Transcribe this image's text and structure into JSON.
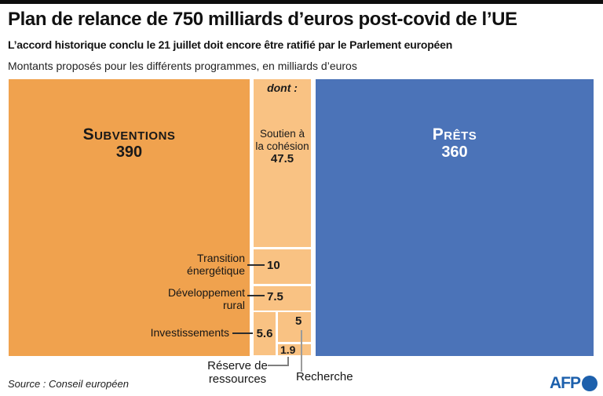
{
  "header": {
    "title": "Plan de relance de 750 milliards d’euros post-covid de l’UE",
    "subtitle": "L’accord historique conclu le 21 juillet doit encore être ratifié par le Parlement européen",
    "note": "Montants proposés pour les différents programmes, en milliards d’euros"
  },
  "chart": {
    "subventions": {
      "label": "Subventions",
      "value": "390"
    },
    "prets": {
      "label": "Prêts",
      "value": "360"
    },
    "dont": "dont :",
    "cohesion": {
      "line1": "Soutien à",
      "line2": "la cohésion",
      "value": "47.5"
    },
    "transition": {
      "line1": "Transition",
      "line2": "énergétique",
      "value": "10"
    },
    "rural": {
      "line1": "Développement",
      "line2": "rural",
      "value": "7.5"
    },
    "invest": {
      "label": "Investissements",
      "value": "5.6"
    },
    "recherche": {
      "label": "Recherche",
      "value": "5"
    },
    "reserve": {
      "line1": "Réserve de",
      "line2": "ressources",
      "value": "1.9"
    }
  },
  "chart_data": {
    "type": "treemap",
    "title": "Plan de relance de 750 milliards d’euros post-covid de l’UE",
    "unit": "milliards d'euros",
    "total": 750,
    "series": [
      {
        "name": "Subventions",
        "value": 390,
        "color": "#f0a24e"
      },
      {
        "name": "Prêts",
        "value": 360,
        "color": "#4b73b8"
      }
    ],
    "subventions_breakdown_note": "dont :",
    "subventions_breakdown": [
      {
        "name": "Soutien à la cohésion",
        "value": 47.5
      },
      {
        "name": "Transition énergétique",
        "value": 10
      },
      {
        "name": "Développement rural",
        "value": 7.5
      },
      {
        "name": "Investissements",
        "value": 5.6
      },
      {
        "name": "Recherche",
        "value": 5
      },
      {
        "name": "Réserve de ressources",
        "value": 1.9
      }
    ],
    "breakdown_color": "#f9c283",
    "layout_hint": "area-proportional treemap, grants left (orange), breakdown middle column (light orange), loans right (blue)"
  },
  "footer": {
    "source": "Source : Conseil européen",
    "logo": "AFP"
  }
}
